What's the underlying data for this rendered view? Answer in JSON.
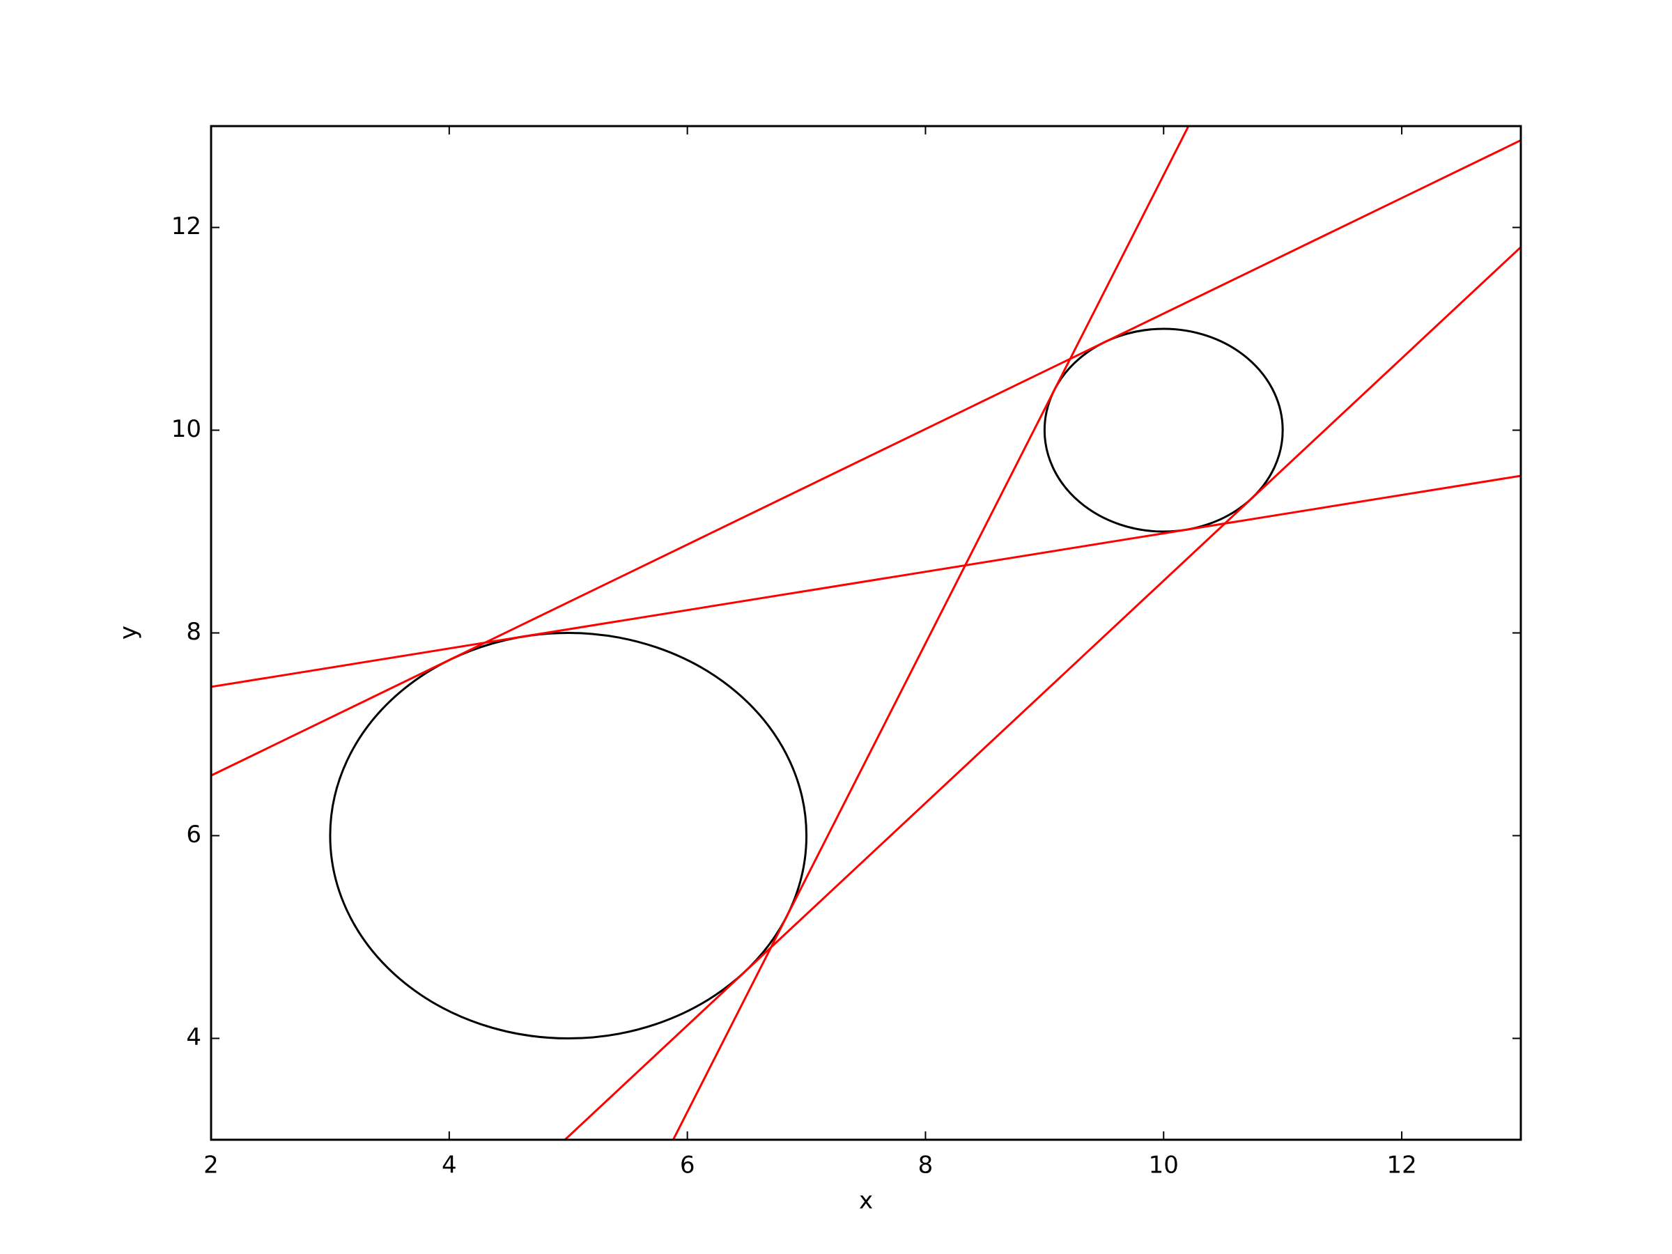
{
  "chart_data": {
    "type": "line",
    "xlabel": "x",
    "ylabel": "y",
    "xlim": [
      2,
      13
    ],
    "ylim": [
      3,
      13
    ],
    "xticks": [
      2,
      4,
      6,
      8,
      10,
      12
    ],
    "yticks": [
      4,
      6,
      8,
      10,
      12
    ],
    "line_color": "#ff0000",
    "circle_color": "#000000",
    "lines": [
      {
        "x": [
          5.881,
          10.209
        ],
        "values": [
          3,
          13
        ]
      },
      {
        "x": [
          2,
          13
        ],
        "values": [
          6.593,
          12.86
        ]
      },
      {
        "x": [
          4.972,
          13
        ],
        "values": [
          3,
          11.806
        ]
      },
      {
        "x": [
          2,
          13
        ],
        "values": [
          7.468,
          9.55
        ]
      }
    ],
    "circles": [
      {
        "cx": 5,
        "cy": 6,
        "r": 2
      },
      {
        "cx": 10,
        "cy": 10,
        "r": 1
      }
    ]
  }
}
